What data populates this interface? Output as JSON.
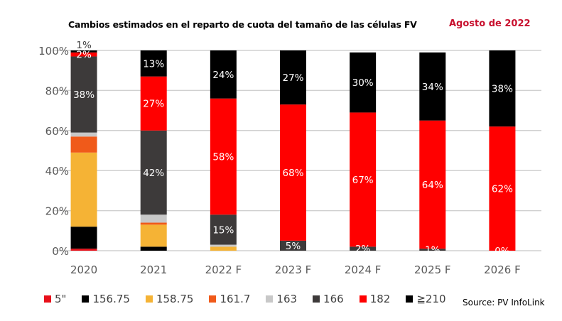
{
  "chart_data": {
    "type": "bar",
    "stacked": true,
    "title": "Cambios estimados en el reparto de cuota del tamaño de las células FV",
    "subtitle": "Agosto de 2022",
    "source": "Source: PV InfoLink",
    "categories": [
      "2020",
      "2021",
      "2022 F",
      "2023 F",
      "2024 F",
      "2025 F",
      "2026 F"
    ],
    "ylim": [
      0,
      100
    ],
    "yticks": [
      "0%",
      "20%",
      "40%",
      "60%",
      "80%",
      "100%"
    ],
    "grid": true,
    "legend_position": "bottom",
    "series": [
      {
        "name": "5\"",
        "color": "#e8101a",
        "values": [
          1,
          0,
          0,
          0,
          0,
          0,
          0
        ],
        "labels": [
          null,
          null,
          null,
          null,
          null,
          null,
          null
        ]
      },
      {
        "name": "156.75",
        "color": "#000000",
        "values": [
          11,
          2,
          0,
          0,
          0,
          0,
          0
        ],
        "labels": [
          null,
          null,
          null,
          null,
          null,
          null,
          null
        ]
      },
      {
        "name": "158.75",
        "color": "#f5b335",
        "values": [
          37,
          11,
          2,
          0,
          0,
          0,
          0
        ],
        "labels": [
          null,
          null,
          null,
          null,
          null,
          null,
          null
        ]
      },
      {
        "name": "161.7",
        "color": "#f05a1a",
        "values": [
          8,
          1,
          0,
          0,
          0,
          0,
          0
        ],
        "labels": [
          null,
          null,
          null,
          null,
          null,
          null,
          null
        ]
      },
      {
        "name": "163",
        "color": "#c8c8c8",
        "values": [
          2,
          4,
          1,
          0,
          0,
          0,
          0
        ],
        "labels": [
          null,
          null,
          null,
          null,
          null,
          null,
          null
        ]
      },
      {
        "name": "166",
        "color": "#3d3a3a",
        "values": [
          38,
          42,
          15,
          5,
          2,
          1,
          0
        ],
        "labels": [
          "38%",
          "42%",
          "15%",
          "5%",
          "2%",
          "1%",
          "0%"
        ]
      },
      {
        "name": "182",
        "color": "#ff0000",
        "values": [
          2,
          27,
          58,
          68,
          67,
          64,
          62
        ],
        "labels": [
          "2%",
          "27%",
          "58%",
          "68%",
          "67%",
          "64%",
          "62%"
        ]
      },
      {
        "name": "≧210",
        "color": "#000000",
        "values": [
          1,
          13,
          24,
          27,
          30,
          34,
          38
        ],
        "labels": [
          "1%",
          "13%",
          "24%",
          "27%",
          "30%",
          "34%",
          "38%"
        ]
      }
    ]
  }
}
